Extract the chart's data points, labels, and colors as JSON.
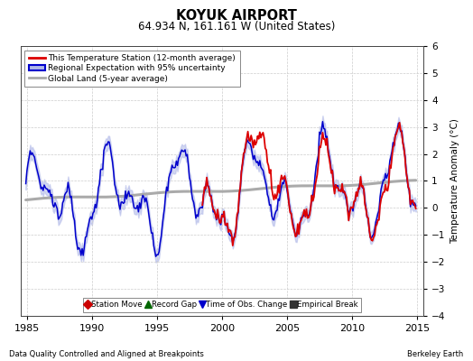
{
  "title": "KOYUK AIRPORT",
  "subtitle": "64.934 N, 161.161 W (United States)",
  "ylabel": "Temperature Anomaly (°C)",
  "xlabel_left": "Data Quality Controlled and Aligned at Breakpoints",
  "xlabel_right": "Berkeley Earth",
  "ylim": [
    -4,
    6
  ],
  "xlim": [
    1984.5,
    2015.5
  ],
  "yticks": [
    -4,
    -3,
    -2,
    -1,
    0,
    1,
    2,
    3,
    4,
    5,
    6
  ],
  "xticks": [
    1985,
    1990,
    1995,
    2000,
    2005,
    2010,
    2015
  ],
  "background_color": "#ffffff",
  "grid_color": "#cccccc",
  "red_color": "#dd0000",
  "blue_color": "#0000cc",
  "blue_fill_color": "#b0b8e8",
  "gray_color": "#aaaaaa",
  "red_station_start_year": 1998.5,
  "legend1_items": [
    "This Temperature Station (12-month average)",
    "Regional Expectation with 95% uncertainty",
    "Global Land (5-year average)"
  ],
  "legend2_items": [
    "Station Move",
    "Record Gap",
    "Time of Obs. Change",
    "Empirical Break"
  ],
  "legend2_colors": [
    "#cc0000",
    "#006600",
    "#0000cc",
    "#333333"
  ],
  "legend2_markers": [
    "D",
    "^",
    "v",
    "s"
  ]
}
